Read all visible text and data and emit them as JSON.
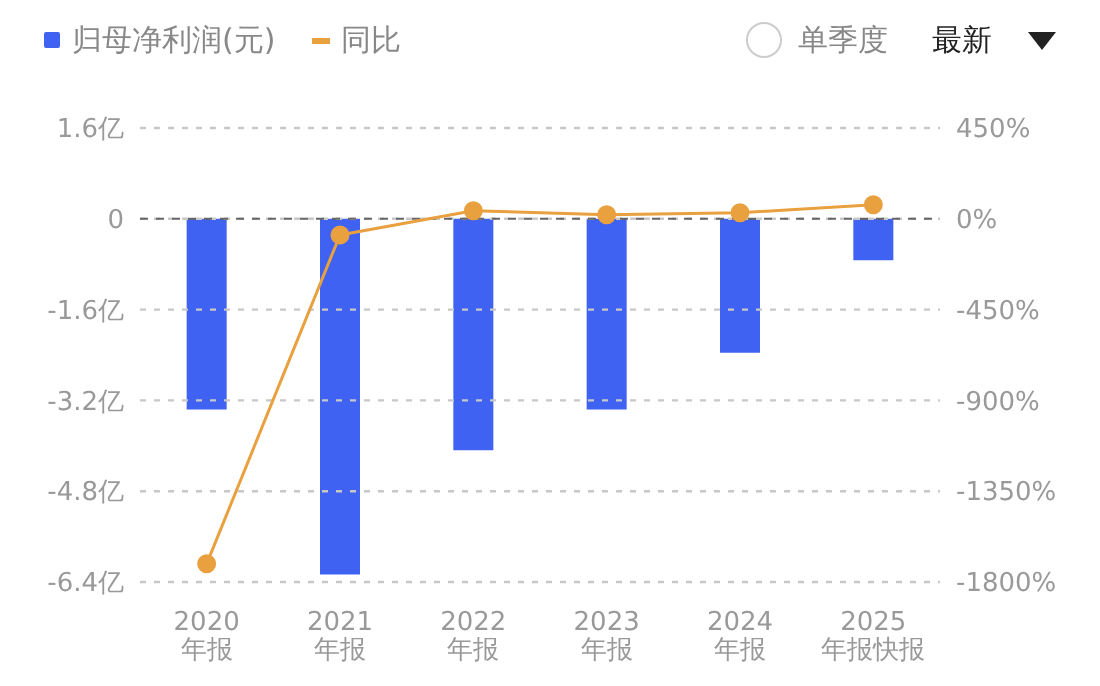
{
  "chart_data": {
    "type": "bar",
    "categories": [
      "2020\n年报",
      "2021\n年报",
      "2022\n年报",
      "2023\n年报",
      "2024\n年报",
      "2025\n年报快报"
    ],
    "series": [
      {
        "name": "归母净利润(元)",
        "color": "#3f62f2",
        "values": [
          -3.36,
          -6.27,
          -4.08,
          -3.36,
          -2.36,
          -0.73
        ]
      },
      {
        "name": "同比",
        "type": "line",
        "axis": "y2",
        "color": "#e9a03f",
        "values": [
          -1710,
          -80,
          40,
          20,
          30,
          70
        ]
      }
    ],
    "ylim": [
      -6.4,
      1.6
    ],
    "yticks": [
      {
        "value": 1.6,
        "label": "1.6亿"
      },
      0,
      {
        "value": -1.6,
        "label": "-1.6亿"
      },
      {
        "value": -3.2,
        "label": "-3.2亿"
      },
      {
        "value": -4.8,
        "label": "-4.8亿"
      },
      {
        "value": -6.4,
        "label": "-6.4亿"
      }
    ],
    "y2lim": [
      -1800,
      450
    ],
    "y2ticks": [
      {
        "value": 450,
        "label": "450%"
      },
      {
        "value": 0,
        "label": "0%"
      },
      {
        "value": -450,
        "label": "-450%"
      },
      {
        "value": -900,
        "label": "-900%"
      },
      {
        "value": -1350,
        "label": "-1350%"
      },
      {
        "value": -1800,
        "label": "-1800%"
      }
    ],
    "grid": "y",
    "legend": "top left",
    "marker": "circle",
    "ref_lines": [
      {
        "axis": "y",
        "value": 0,
        "color": "#666666",
        "line_style": "dashed"
      }
    ],
    "annotations": [
      "单季度",
      "最新"
    ]
  }
}
